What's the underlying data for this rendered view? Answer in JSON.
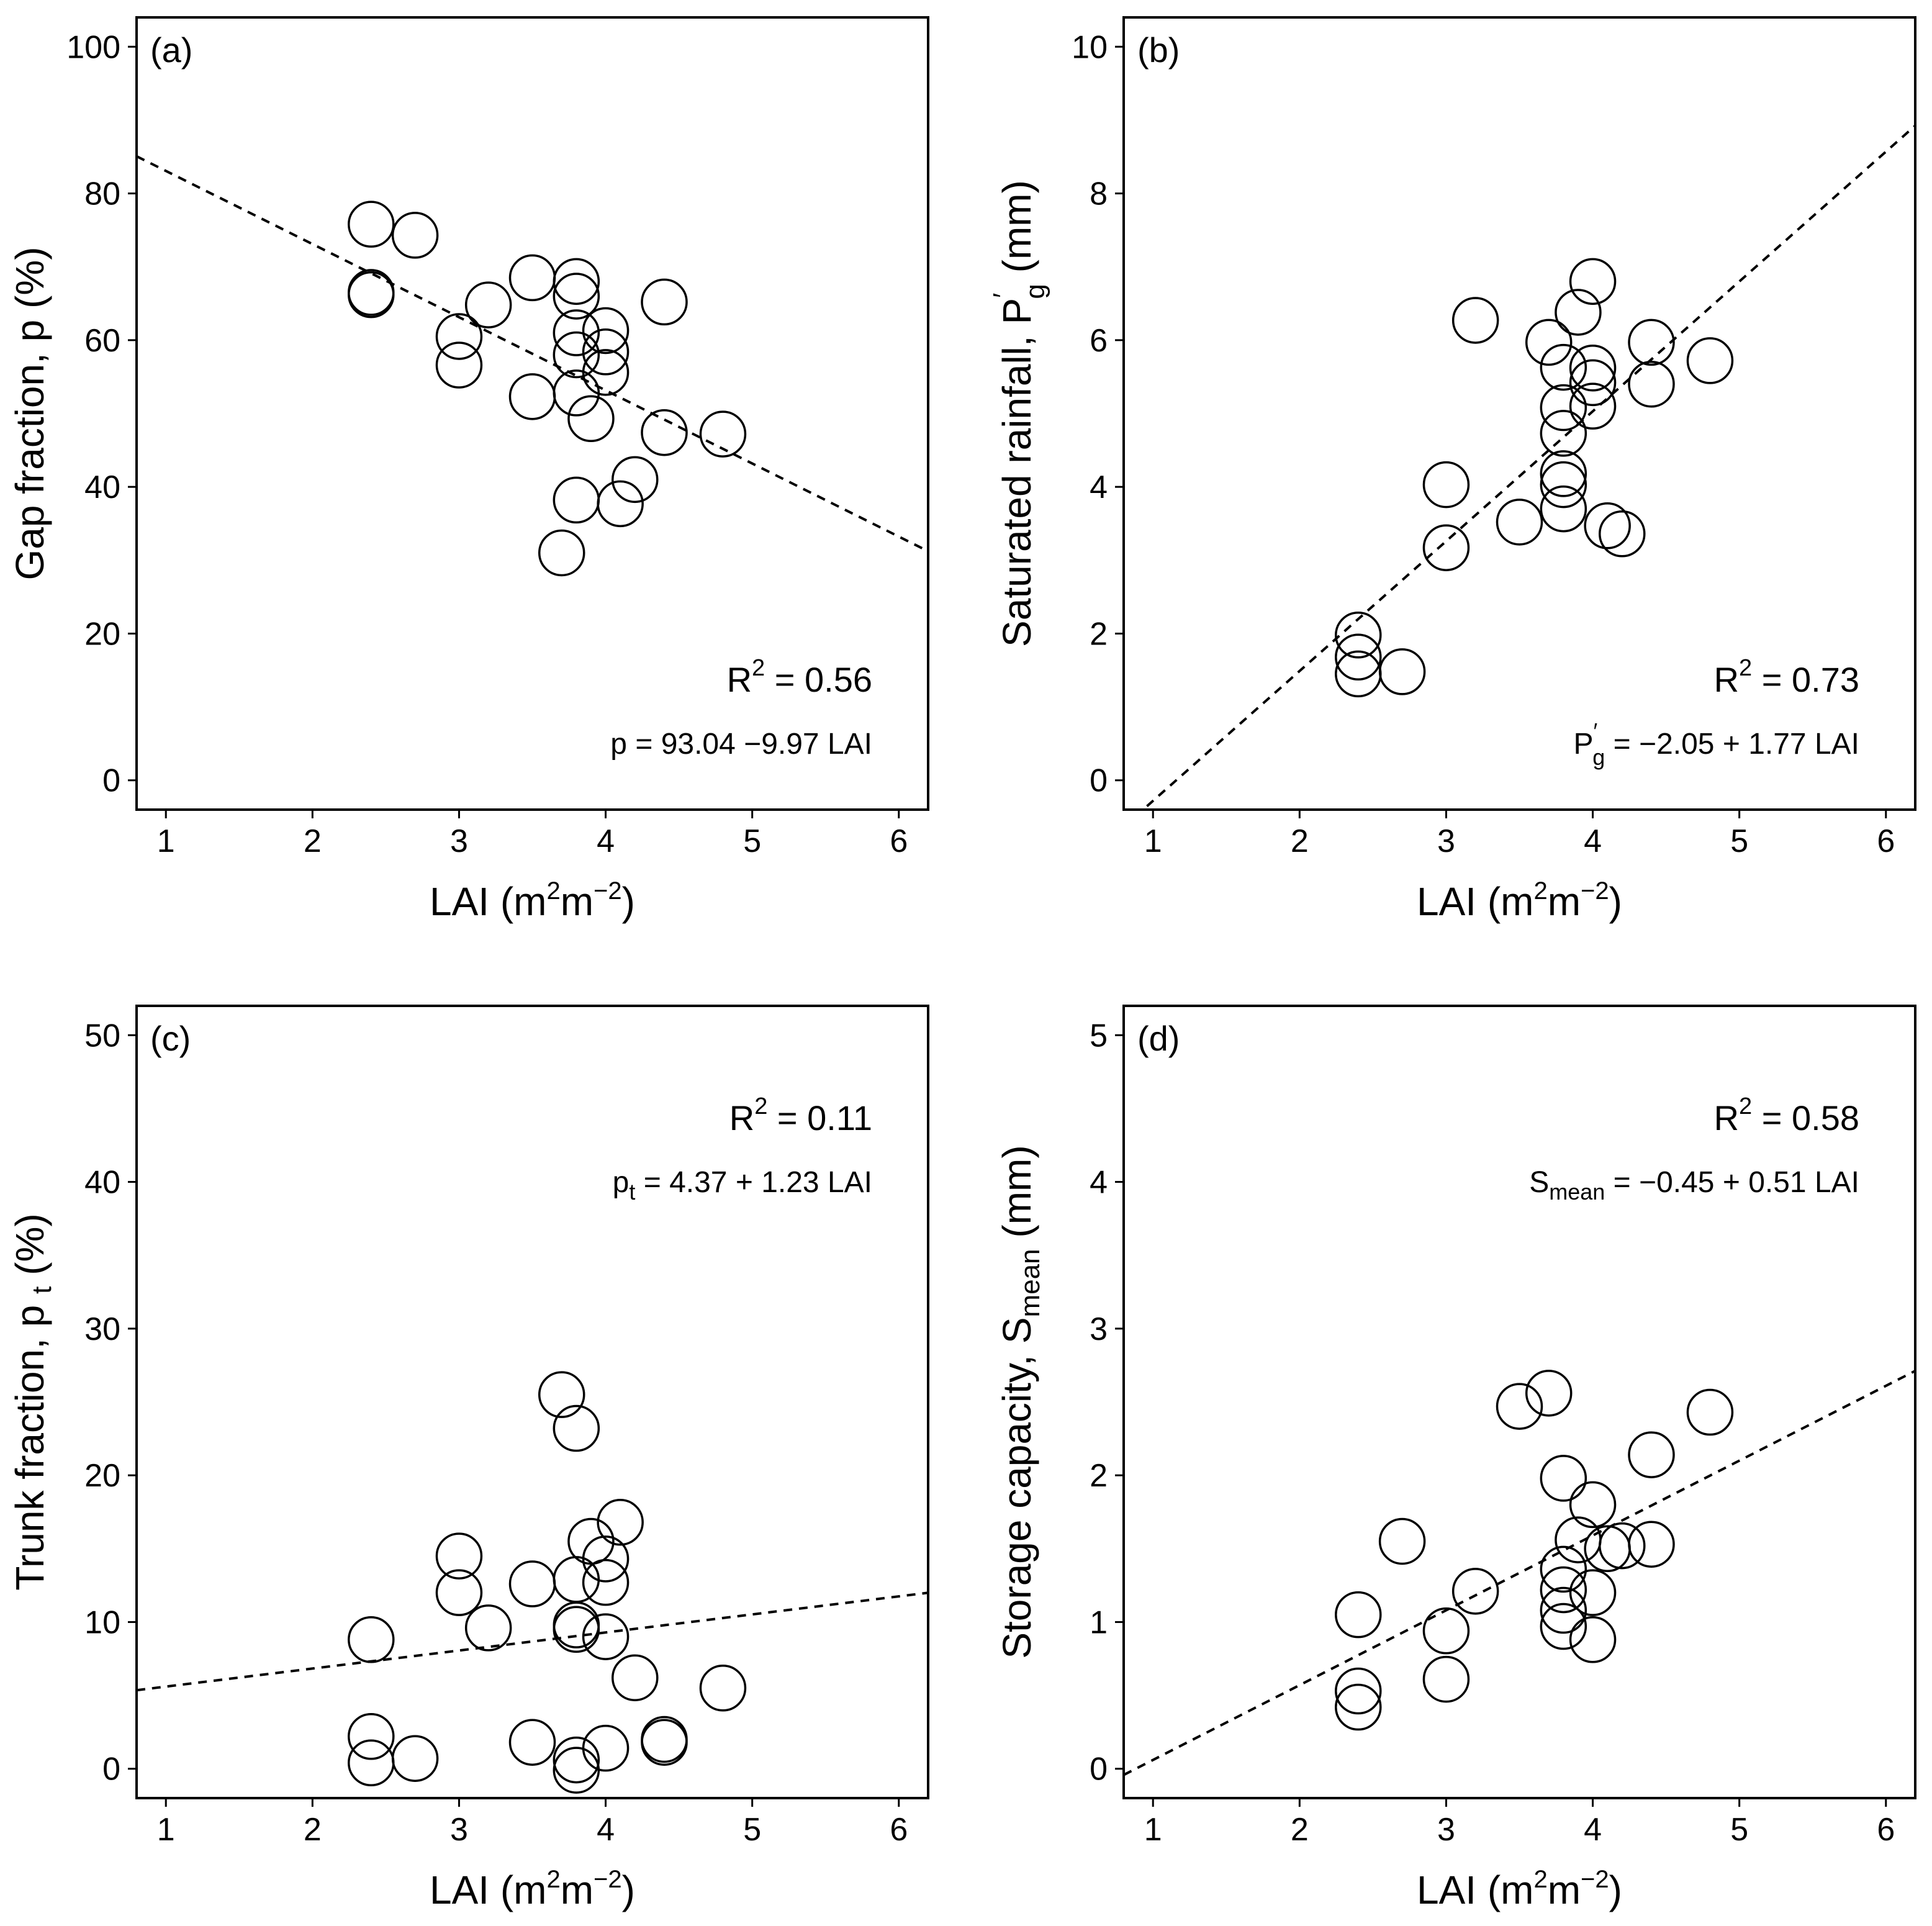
{
  "chart_data": [
    {
      "id": "a",
      "type": "scatter",
      "panel_label": "(a)",
      "xlabel": "LAI (m²m⁻²)",
      "ylabel": "Gap fraction, p (%)",
      "xlim": [
        0.8,
        6.2
      ],
      "ylim": [
        -4,
        104
      ],
      "xticks": [
        1,
        2,
        3,
        4,
        5,
        6
      ],
      "yticks": [
        0,
        20,
        40,
        60,
        80,
        100
      ],
      "points": [
        [
          2.4,
          75.8
        ],
        [
          2.4,
          66.5
        ],
        [
          2.4,
          66.2
        ],
        [
          2.7,
          74.3
        ],
        [
          3.0,
          60.5
        ],
        [
          3.0,
          56.6
        ],
        [
          3.2,
          64.8
        ],
        [
          3.5,
          68.5
        ],
        [
          3.5,
          52.3
        ],
        [
          3.7,
          31.0
        ],
        [
          3.8,
          68.0
        ],
        [
          3.8,
          66.0
        ],
        [
          3.8,
          61.0
        ],
        [
          3.8,
          58.0
        ],
        [
          3.8,
          52.8
        ],
        [
          3.8,
          38.2
        ],
        [
          3.9,
          49.3
        ],
        [
          4.0,
          61.3
        ],
        [
          4.0,
          58.4
        ],
        [
          4.0,
          55.6
        ],
        [
          4.1,
          37.7
        ],
        [
          4.2,
          41.0
        ],
        [
          4.4,
          65.2
        ],
        [
          4.4,
          47.4
        ],
        [
          4.8,
          47.2
        ]
      ],
      "fit": {
        "intercept": 93.04,
        "slope": -9.97,
        "x_range": [
          0.8,
          6.2
        ]
      },
      "r2": {
        "base": "R",
        "sup": "2",
        "value": " = 0.56"
      },
      "equation": {
        "base": "p",
        "sub": "",
        "sup": "",
        "rhs": " = 93.04 −9.97 LAI"
      },
      "r2_pos": "upper-right",
      "eq_pos": "upper-right",
      "annot_position": "bottom-right"
    },
    {
      "id": "b",
      "type": "scatter",
      "panel_label": "(b)",
      "xlabel": "LAI (m²m⁻²)",
      "ylabel": "Saturated rainfall, P′g (mm)",
      "xlim": [
        0.8,
        6.2
      ],
      "ylim": [
        -0.4,
        10.4
      ],
      "xticks": [
        1,
        2,
        3,
        4,
        5,
        6
      ],
      "yticks": [
        0,
        2,
        4,
        6,
        8,
        10
      ],
      "points": [
        [
          2.4,
          1.98
        ],
        [
          2.4,
          1.68
        ],
        [
          2.4,
          1.45
        ],
        [
          2.7,
          1.48
        ],
        [
          3.0,
          4.03
        ],
        [
          3.0,
          3.17
        ],
        [
          3.2,
          6.27
        ],
        [
          3.5,
          3.52
        ],
        [
          3.7,
          5.97
        ],
        [
          3.8,
          5.63
        ],
        [
          3.8,
          5.08
        ],
        [
          3.8,
          4.73
        ],
        [
          3.8,
          4.18
        ],
        [
          3.8,
          4.03
        ],
        [
          3.8,
          3.7
        ],
        [
          3.9,
          6.38
        ],
        [
          4.0,
          6.8
        ],
        [
          4.0,
          5.62
        ],
        [
          4.0,
          5.42
        ],
        [
          4.0,
          5.1
        ],
        [
          4.1,
          3.47
        ],
        [
          4.2,
          3.36
        ],
        [
          4.4,
          5.97
        ],
        [
          4.4,
          5.4
        ],
        [
          4.8,
          5.72
        ]
      ],
      "fit": {
        "intercept": -2.05,
        "slope": 1.77,
        "x_range": [
          0.8,
          6.2
        ]
      },
      "r2": {
        "base": "R",
        "sup": "2",
        "value": " = 0.73"
      },
      "equation": {
        "base": "P",
        "sub": "g",
        "sup": "′",
        "rhs": " = −2.05 + 1.77 LAI"
      },
      "annot_position": "bottom-right"
    },
    {
      "id": "c",
      "type": "scatter",
      "panel_label": "(c)",
      "xlabel": "LAI (m²m⁻²)",
      "ylabel": "Trunk fraction, p t (%)",
      "xlim": [
        0.8,
        6.2
      ],
      "ylim": [
        -2,
        52
      ],
      "xticks": [
        1,
        2,
        3,
        4,
        5,
        6
      ],
      "yticks": [
        0,
        10,
        20,
        30,
        40,
        50
      ],
      "points": [
        [
          2.4,
          8.8
        ],
        [
          2.4,
          2.2
        ],
        [
          2.4,
          0.4
        ],
        [
          2.7,
          0.7
        ],
        [
          3.0,
          14.5
        ],
        [
          3.0,
          12.0
        ],
        [
          3.2,
          9.6
        ],
        [
          3.5,
          12.6
        ],
        [
          3.5,
          1.8
        ],
        [
          3.7,
          25.5
        ],
        [
          3.8,
          23.2
        ],
        [
          3.8,
          12.9
        ],
        [
          3.8,
          9.8
        ],
        [
          3.8,
          9.5
        ],
        [
          3.8,
          0.6
        ],
        [
          3.8,
          -0.1
        ],
        [
          3.9,
          15.5
        ],
        [
          4.0,
          14.3
        ],
        [
          4.0,
          12.7
        ],
        [
          4.0,
          9.0
        ],
        [
          4.0,
          1.4
        ],
        [
          4.1,
          16.8
        ],
        [
          4.2,
          6.2
        ],
        [
          4.4,
          2.0
        ],
        [
          4.4,
          1.8
        ],
        [
          4.8,
          5.5
        ]
      ],
      "fit": {
        "intercept": 4.37,
        "slope": 1.23,
        "x_range": [
          0.8,
          6.2
        ]
      },
      "r2": {
        "base": "R",
        "sup": "2",
        "value": " = 0.11"
      },
      "equation": {
        "base": "p",
        "sub": "t",
        "sup": "",
        "rhs": " = 4.37 + 1.23 LAI"
      },
      "annot_position": "top-right"
    },
    {
      "id": "d",
      "type": "scatter",
      "panel_label": "(d)",
      "xlabel": "LAI (m²m⁻²)",
      "ylabel": "Storage capacity, Smean (mm)",
      "xlim": [
        0.8,
        6.2
      ],
      "ylim": [
        -0.2,
        5.2
      ],
      "xticks": [
        1,
        2,
        3,
        4,
        5,
        6
      ],
      "yticks": [
        0,
        1,
        2,
        3,
        4,
        5
      ],
      "points": [
        [
          2.4,
          1.05
        ],
        [
          2.4,
          0.53
        ],
        [
          2.4,
          0.42
        ],
        [
          2.7,
          1.55
        ],
        [
          3.0,
          0.94
        ],
        [
          3.0,
          0.61
        ],
        [
          3.2,
          1.21
        ],
        [
          3.5,
          2.47
        ],
        [
          3.7,
          2.56
        ],
        [
          3.8,
          1.98
        ],
        [
          3.8,
          1.36
        ],
        [
          3.8,
          1.22
        ],
        [
          3.8,
          1.08
        ],
        [
          3.8,
          0.97
        ],
        [
          3.9,
          1.56
        ],
        [
          4.0,
          1.8
        ],
        [
          4.0,
          1.2
        ],
        [
          4.0,
          0.88
        ],
        [
          4.1,
          1.5
        ],
        [
          4.2,
          1.52
        ],
        [
          4.4,
          2.14
        ],
        [
          4.4,
          1.53
        ],
        [
          4.8,
          2.43
        ]
      ],
      "fit": {
        "intercept": -0.45,
        "slope": 0.51,
        "x_range": [
          0.8,
          6.2
        ]
      },
      "r2": {
        "base": "R",
        "sup": "2",
        "value": " = 0.58"
      },
      "equation": {
        "base": "S",
        "sub": "mean",
        "sup": "",
        "rhs": " = −0.45 + 0.51 LAI"
      },
      "annot_position": "top-right"
    }
  ],
  "axis_text": {
    "xlabel_main": "LAI (m",
    "xlabel_sup1": "2",
    "xlabel_mid": "m",
    "xlabel_sup2": "−2",
    "xlabel_end": ")",
    "ylabel_a": "Gap fraction, p (%)",
    "ylabel_b_main": "Saturated rainfall, P",
    "ylabel_b_sup": "′",
    "ylabel_b_sub": "g",
    "ylabel_b_end": " (mm)",
    "ylabel_c_main": "Trunk fraction, p",
    "ylabel_c_sub": "t",
    "ylabel_c_end": " (%)",
    "ylabel_d_main": "Storage capacity, S",
    "ylabel_d_sub": "mean",
    "ylabel_d_end": " (mm)"
  }
}
